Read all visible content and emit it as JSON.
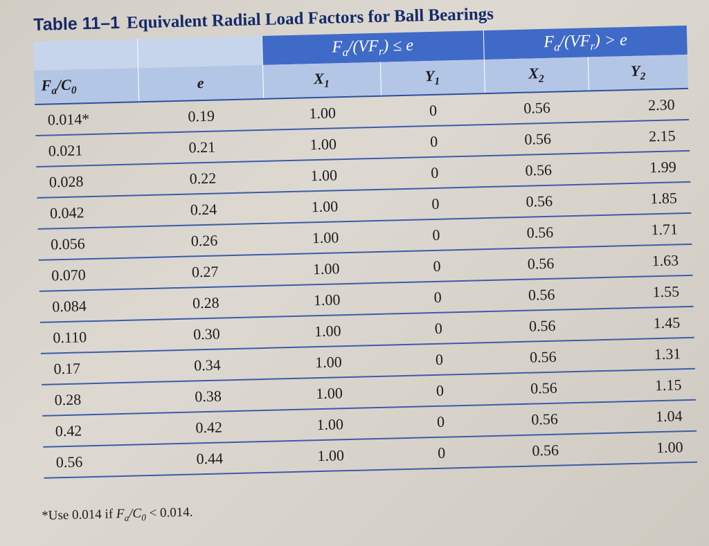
{
  "title": {
    "label": "Table 11–1",
    "text": "Equivalent Radial Load Factors for Ball Bearings"
  },
  "header": {
    "group1": "F_a/(VF_r) ≤ e",
    "group2": "F_a/(VF_r) > e",
    "columns": [
      "F_a/C_0",
      "e",
      "X_1",
      "Y_1",
      "X_2",
      "Y_2"
    ]
  },
  "rows": [
    [
      "0.014*",
      "0.19",
      "1.00",
      "0",
      "0.56",
      "2.30"
    ],
    [
      "0.021",
      "0.21",
      "1.00",
      "0",
      "0.56",
      "2.15"
    ],
    [
      "0.028",
      "0.22",
      "1.00",
      "0",
      "0.56",
      "1.99"
    ],
    [
      "0.042",
      "0.24",
      "1.00",
      "0",
      "0.56",
      "1.85"
    ],
    [
      "0.056",
      "0.26",
      "1.00",
      "0",
      "0.56",
      "1.71"
    ],
    [
      "0.070",
      "0.27",
      "1.00",
      "0",
      "0.56",
      "1.63"
    ],
    [
      "0.084",
      "0.28",
      "1.00",
      "0",
      "0.56",
      "1.55"
    ],
    [
      "0.110",
      "0.30",
      "1.00",
      "0",
      "0.56",
      "1.45"
    ],
    [
      "0.17",
      "0.34",
      "1.00",
      "0",
      "0.56",
      "1.31"
    ],
    [
      "0.28",
      "0.38",
      "1.00",
      "0",
      "0.56",
      "1.15"
    ],
    [
      "0.42",
      "0.42",
      "1.00",
      "0",
      "0.56",
      "1.04"
    ],
    [
      "0.56",
      "0.44",
      "1.00",
      "0",
      "0.56",
      "1.00"
    ]
  ],
  "footnote": {
    "prefix": "*Use 0.014 if ",
    "ratio": "F_a/C_0",
    "suffix": " < 0.014."
  },
  "colors": {
    "group_header_bg": "#3f6ac8",
    "header_bg": "#b4c6e6",
    "rule": "#3c5ca8",
    "title": "#152a6a"
  }
}
